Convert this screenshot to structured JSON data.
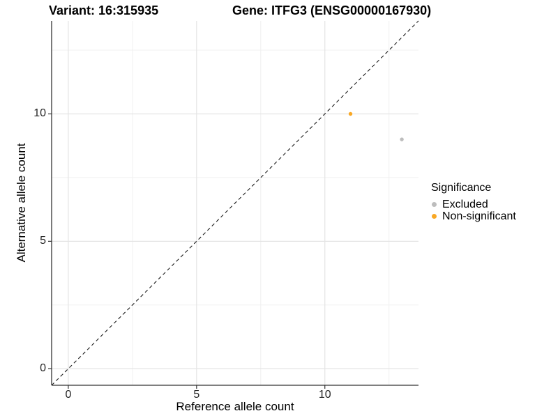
{
  "header": {
    "variant_title": "Variant: 16:315935",
    "gene_title": "Gene: ITFG3 (ENSG00000167930)"
  },
  "axes": {
    "x_label": "Reference allele count",
    "y_label": "Alternative allele count",
    "x_ticks": [
      0,
      5,
      10
    ],
    "y_ticks": [
      0,
      5,
      10
    ],
    "x_minor_ticks": [
      2.5,
      7.5,
      12.5
    ],
    "y_minor_ticks": [
      2.5,
      7.5,
      12.5
    ]
  },
  "legend": {
    "title": "Significance",
    "items": [
      {
        "label": "Excluded",
        "color": "#BDBDBD"
      },
      {
        "label": "Non-significant",
        "color": "#F9A825"
      }
    ]
  },
  "colors": {
    "excluded": "#BDBDBD",
    "non_significant": "#F9A825",
    "axis_line": "#333333",
    "grid_major": "#E4E4E4",
    "grid_minor": "#F0F0F0",
    "identity_line": "#1A1A1A"
  },
  "chart_data": {
    "type": "scatter",
    "title": "Variant: 16:315935 | Gene: ITFG3 (ENSG00000167930)",
    "xlabel": "Reference allele count",
    "ylabel": "Alternative allele count",
    "xlim": [
      -0.65,
      13.65
    ],
    "ylim": [
      -0.65,
      13.65
    ],
    "x_ticks": [
      0,
      5,
      10
    ],
    "y_ticks": [
      0,
      5,
      10
    ],
    "grid": true,
    "legend_position": "right",
    "legend_title": "Significance",
    "series": [
      {
        "name": "Excluded",
        "color": "#BDBDBD",
        "points": [
          {
            "x": 13,
            "y": 9
          }
        ]
      },
      {
        "name": "Non-significant",
        "color": "#F9A825",
        "points": [
          {
            "x": 11,
            "y": 10
          }
        ]
      }
    ],
    "reference_line": {
      "type": "identity y=x",
      "style": "dashed",
      "color": "#1A1A1A"
    }
  }
}
